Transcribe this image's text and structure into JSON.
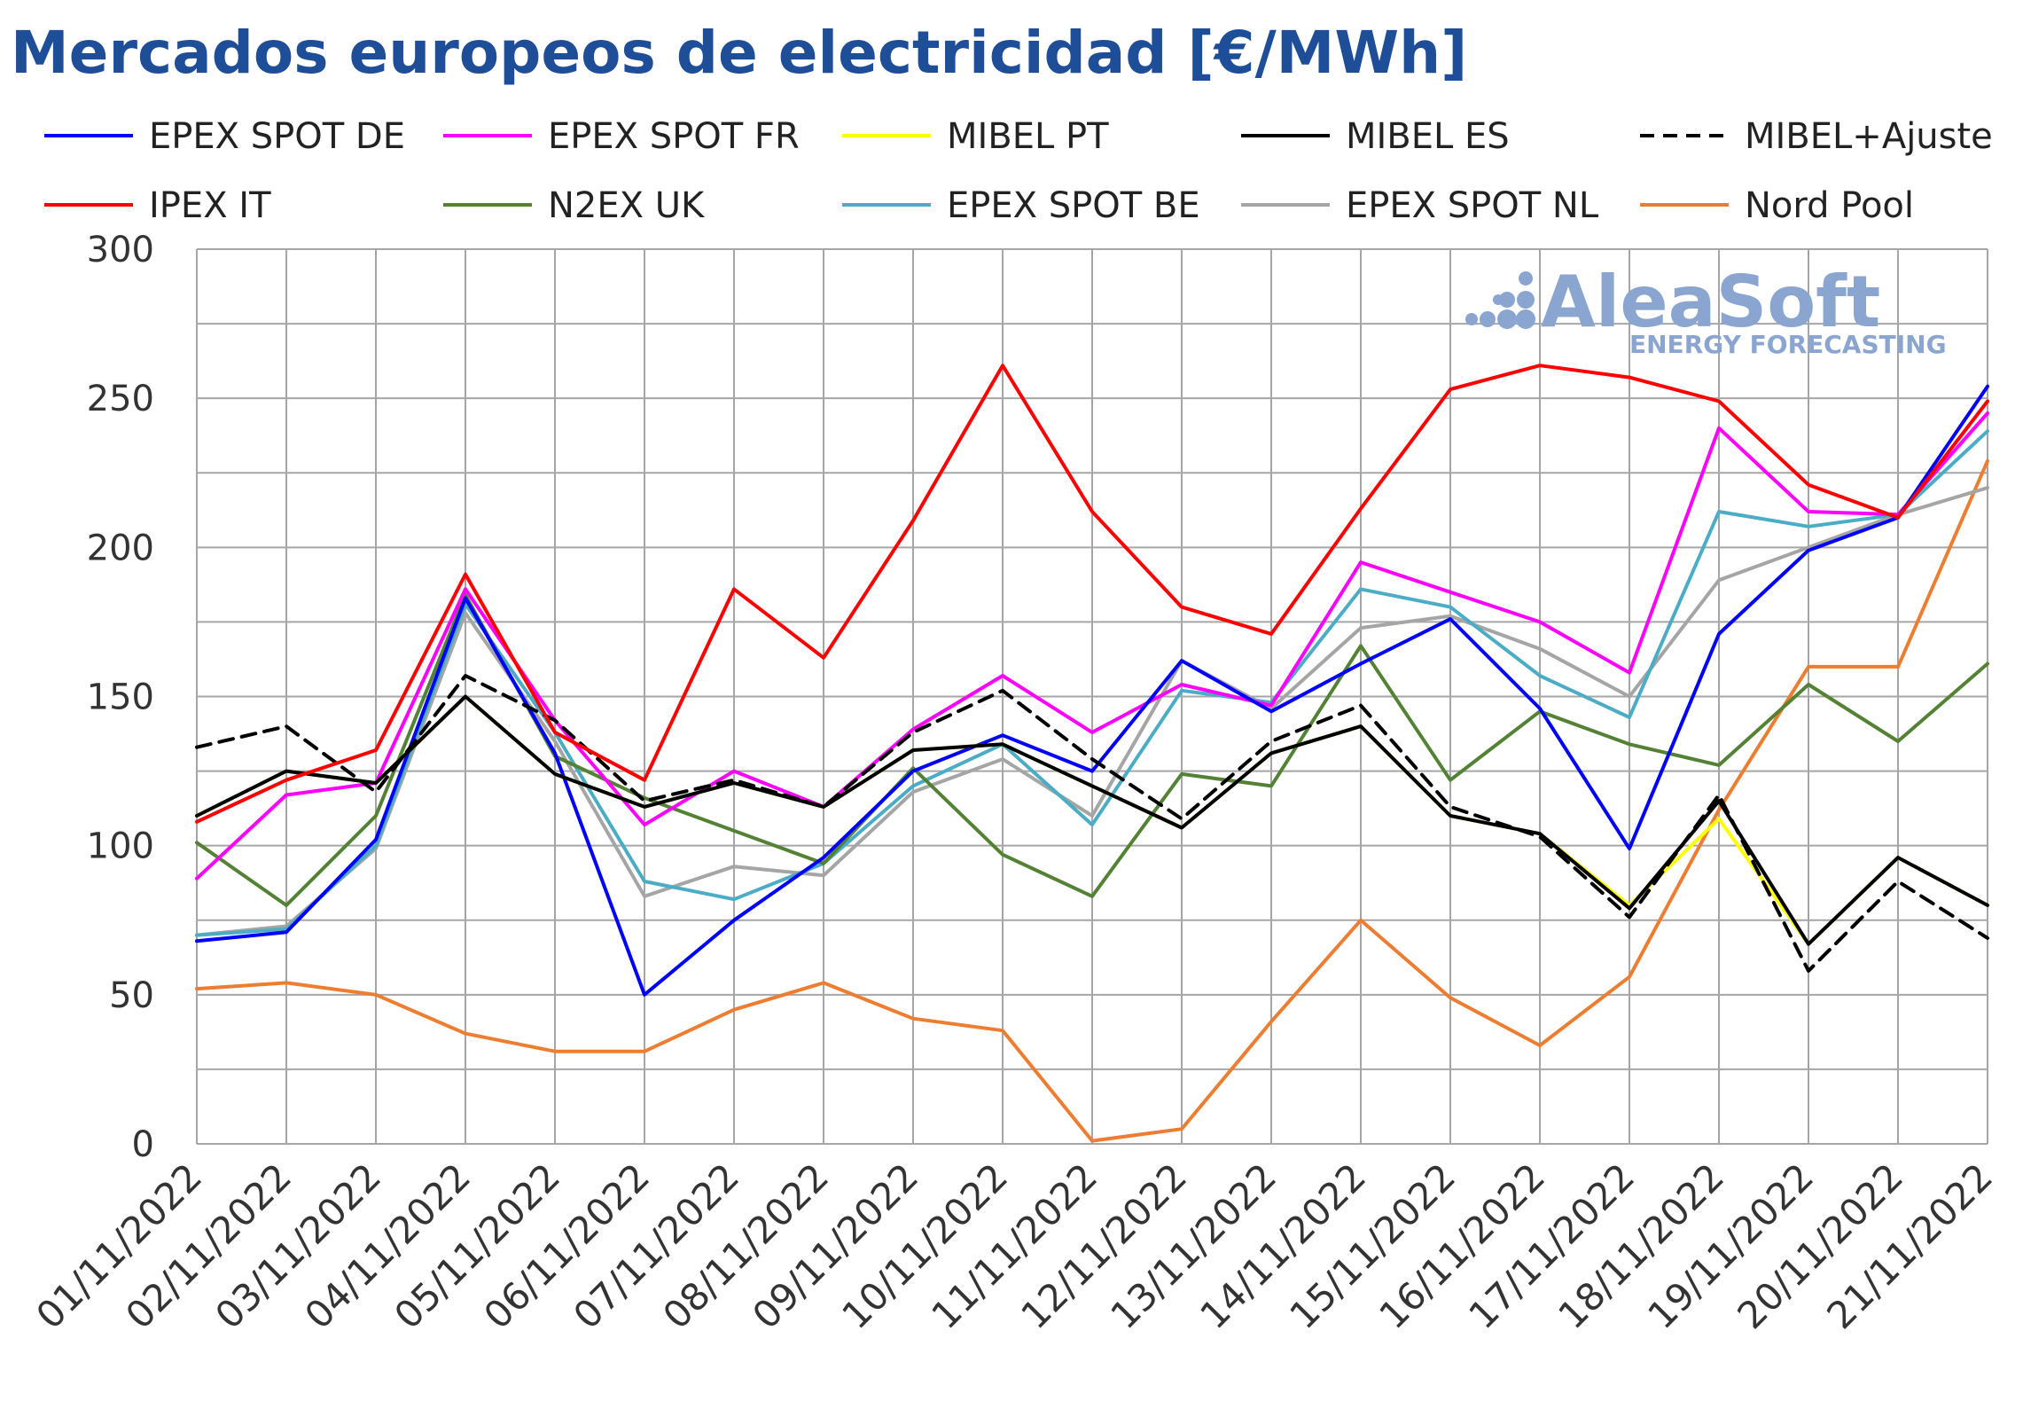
{
  "chart_data": {
    "type": "line",
    "title": "Mercados europeos de electricidad [€/MWh]",
    "xlabel": "",
    "ylabel": "",
    "ylim": [
      0,
      300
    ],
    "yticks": [
      0,
      50,
      100,
      150,
      200,
      250,
      300
    ],
    "grid": true,
    "legend_position": "top",
    "categories": [
      "01/11/2022",
      "02/11/2022",
      "03/11/2022",
      "04/11/2022",
      "05/11/2022",
      "06/11/2022",
      "07/11/2022",
      "08/11/2022",
      "09/11/2022",
      "10/11/2022",
      "11/11/2022",
      "12/11/2022",
      "13/11/2022",
      "14/11/2022",
      "15/11/2022",
      "16/11/2022",
      "17/11/2022",
      "18/11/2022",
      "19/11/2022",
      "20/11/2022",
      "21/11/2022"
    ],
    "series": [
      {
        "name": "Nord Pool",
        "color": "#ed7d31",
        "dashed": false,
        "values": [
          52,
          54,
          50,
          37,
          31,
          31,
          45,
          54,
          42,
          38,
          1,
          5,
          41,
          75,
          49,
          33,
          56,
          112,
          160,
          160,
          229
        ]
      },
      {
        "name": "EPEX SPOT NL",
        "color": "#a5a5a5",
        "dashed": false,
        "values": [
          70,
          73,
          99,
          178,
          135,
          83,
          93,
          90,
          118,
          129,
          110,
          162,
          146,
          173,
          177,
          166,
          150,
          189,
          200,
          211,
          220
        ]
      },
      {
        "name": "EPEX SPOT BE",
        "color": "#4bacc6",
        "dashed": false,
        "values": [
          70,
          72,
          100,
          181,
          138,
          88,
          82,
          94,
          120,
          134,
          107,
          152,
          148,
          186,
          180,
          157,
          143,
          212,
          207,
          211,
          239
        ]
      },
      {
        "name": "N2EX UK",
        "color": "#548235",
        "dashed": false,
        "values": [
          101,
          80,
          110,
          184,
          130,
          116,
          105,
          94,
          126,
          97,
          83,
          124,
          120,
          167,
          122,
          145,
          134,
          127,
          154,
          135,
          161
        ]
      },
      {
        "name": "EPEX SPOT FR",
        "color": "#ff00ff",
        "dashed": false,
        "values": [
          89,
          117,
          121,
          186,
          142,
          107,
          125,
          113,
          139,
          157,
          138,
          154,
          147,
          195,
          185,
          175,
          158,
          240,
          212,
          211,
          245
        ]
      },
      {
        "name": "EPEX SPOT DE",
        "color": "#0000ff",
        "dashed": false,
        "values": [
          68,
          71,
          102,
          183,
          131,
          50,
          75,
          96,
          125,
          137,
          125,
          162,
          145,
          161,
          176,
          146,
          99,
          171,
          199,
          210,
          254
        ]
      },
      {
        "name": "MIBEL PT",
        "color": "#ffff00",
        "dashed": false,
        "values": [
          110,
          125,
          121,
          150,
          124,
          113,
          121,
          113,
          132,
          134,
          120,
          106,
          131,
          140,
          110,
          104,
          80,
          109,
          67,
          96,
          80
        ]
      },
      {
        "name": "MIBEL ES",
        "color": "#000000",
        "dashed": false,
        "values": [
          110,
          125,
          121,
          150,
          124,
          113,
          121,
          113,
          132,
          134,
          120,
          106,
          131,
          140,
          110,
          104,
          79,
          115,
          67,
          96,
          80
        ]
      },
      {
        "name": "MIBEL+Ajuste",
        "color": "#000000",
        "dashed": true,
        "values": [
          133,
          140,
          118,
          157,
          142,
          115,
          122,
          113,
          138,
          152,
          129,
          109,
          135,
          147,
          113,
          103,
          76,
          117,
          58,
          88,
          69
        ]
      },
      {
        "name": "IPEX IT",
        "color": "#ff0000",
        "dashed": false,
        "values": [
          108,
          122,
          132,
          191,
          138,
          122,
          186,
          163,
          209,
          261,
          212,
          180,
          171,
          213,
          253,
          261,
          257,
          249,
          221,
          210,
          249
        ]
      }
    ],
    "legend_order": [
      [
        "EPEX SPOT DE",
        "EPEX SPOT FR",
        "MIBEL PT",
        "MIBEL ES",
        "MIBEL+Ajuste"
      ],
      [
        "IPEX IT",
        "N2EX UK",
        "EPEX SPOT BE",
        "EPEX SPOT NL",
        "Nord Pool"
      ]
    ]
  },
  "watermark": {
    "brand": "AleaSoft",
    "tagline": "ENERGY FORECASTING",
    "color": "#8aa6d0"
  }
}
